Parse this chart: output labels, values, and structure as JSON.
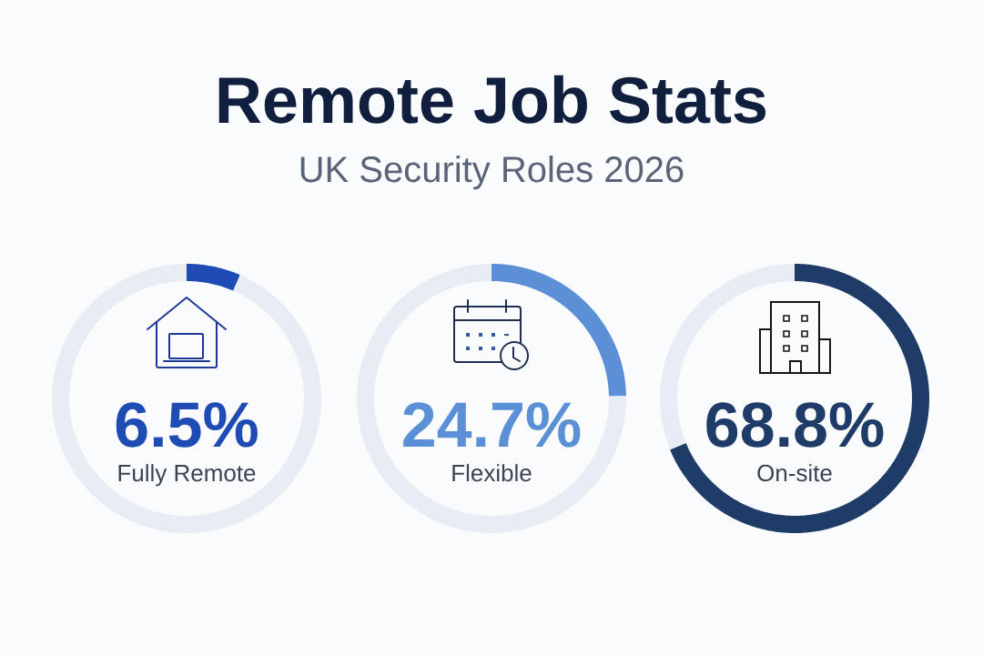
{
  "chart_data": [
    {
      "type": "other",
      "title": "Remote Job Stats",
      "subtitle": "UK Security Roles 2026"
    },
    {
      "type": "donut",
      "title": "Fully Remote",
      "categories": [
        null,
        null
      ],
      "values": [
        6.5,
        93.5
      ],
      "colors": [
        "#1f4bb5",
        "#e8ecf3"
      ],
      "annotations": [
        "6.5%"
      ]
    },
    {
      "type": "donut",
      "title": "Flexible",
      "categories": [
        null,
        null
      ],
      "values": [
        24.7,
        75.3
      ],
      "colors": [
        "#5b8fd6",
        "#e8ecf3"
      ],
      "annotations": [
        "24.7%"
      ]
    },
    {
      "type": "donut",
      "title": "On-site",
      "categories": [
        null,
        null
      ],
      "values": [
        68.8,
        31.2
      ],
      "colors": [
        "#1f3c68",
        "#e8ecf3"
      ],
      "annotations": [
        "68.8%"
      ]
    }
  ]
}
